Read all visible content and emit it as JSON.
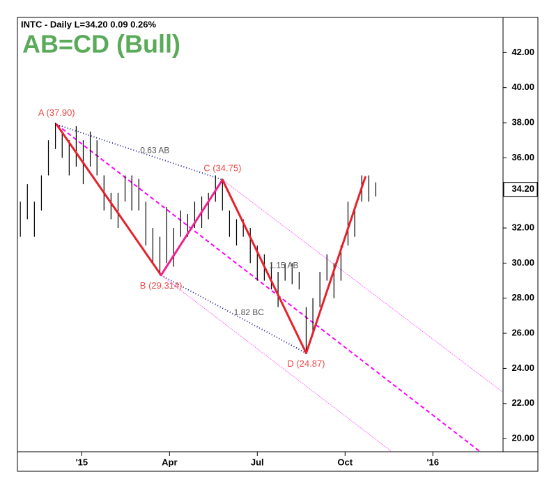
{
  "chart_data": {
    "type": "ohlc",
    "header": "INTC - Daily  L=34.20  0.09  0.26%",
    "title": "AB=CD (Bull)",
    "xlim": [
      -0.2,
      16.4
    ],
    "ylim": [
      19.25,
      44
    ],
    "xticks": [
      {
        "value": 2,
        "label": "'15"
      },
      {
        "value": 5,
        "label": "Apr"
      },
      {
        "value": 8,
        "label": "Jul"
      },
      {
        "value": 11,
        "label": "Oct"
      },
      {
        "value": 14,
        "label": "'16"
      }
    ],
    "yticks": [
      {
        "value": 20,
        "label": "20.00"
      },
      {
        "value": 22,
        "label": "22.00"
      },
      {
        "value": 24,
        "label": "24.00"
      },
      {
        "value": 26,
        "label": "26.00"
      },
      {
        "value": 28,
        "label": "28.00"
      },
      {
        "value": 30,
        "label": "30.00"
      },
      {
        "value": 32,
        "label": "32.00"
      },
      {
        "value": 34,
        "label": "34.00"
      },
      {
        "value": 36,
        "label": "36.00"
      },
      {
        "value": 38,
        "label": "38.00"
      },
      {
        "value": 40,
        "label": "40.00"
      },
      {
        "value": 42,
        "label": "42.00"
      }
    ],
    "bar_color": "#000000",
    "bars": {
      "x": [
        -0.1,
        0.14,
        0.38,
        0.62,
        0.86,
        1.1,
        1.33,
        1.57,
        1.81,
        2.05,
        2.29,
        2.52,
        2.76,
        3,
        3.24,
        3.48,
        3.71,
        3.95,
        4.19,
        4.43,
        4.67,
        4.9,
        5.14,
        5.38,
        5.62,
        5.86,
        6.1,
        6.33,
        6.57,
        6.81,
        7.05,
        7.29,
        7.52,
        7.76,
        8,
        8.24,
        8.48,
        8.71,
        8.95,
        9.19,
        9.43,
        9.67,
        9.9,
        10.14,
        10.38,
        10.62,
        10.86,
        11.1,
        11.33,
        11.57,
        11.81,
        12.05
      ],
      "high": [
        33.5,
        34.5,
        33.5,
        35,
        37,
        38,
        37.5,
        37,
        37.8,
        37,
        37.5,
        37,
        35,
        34,
        34,
        35,
        35,
        34.8,
        33.5,
        32,
        31.5,
        33.2,
        32,
        33,
        32.8,
        33.5,
        33.8,
        34,
        35,
        34.7,
        33,
        32.5,
        32.5,
        32,
        31,
        30.5,
        30,
        29.5,
        30,
        30,
        29.5,
        27.5,
        28,
        29.5,
        30.5,
        30,
        31,
        33.5,
        33,
        35,
        35,
        34.6
      ],
      "low": [
        31.5,
        32.5,
        31.5,
        33,
        35,
        36.5,
        36,
        35,
        35.5,
        34.5,
        35.5,
        35,
        33,
        32.5,
        32,
        33.5,
        33,
        33,
        31,
        30,
        29.3,
        30,
        29.8,
        31.5,
        31.5,
        32,
        32,
        32.5,
        33.5,
        33,
        31.5,
        31,
        31.5,
        30,
        29,
        29,
        28.5,
        27.5,
        29,
        28.8,
        28.5,
        24.9,
        26,
        27.5,
        29,
        28,
        29,
        31,
        31.5,
        33.5,
        33.5,
        33.8
      ]
    },
    "pattern": {
      "label_color": "#f04848",
      "segment_colors": [
        "#e8202a",
        "#f0208f",
        "#e8202a",
        "#e8202a"
      ],
      "points": [
        {
          "label": "A (37.90)",
          "x": 1.14,
          "y": 37.9
        },
        {
          "label": "B (29.314)",
          "x": 4.71,
          "y": 29.314
        },
        {
          "label": "C (34.75)",
          "x": 6.81,
          "y": 34.75
        },
        {
          "label": "D (24.87)",
          "x": 9.67,
          "y": 24.87
        },
        {
          "x": 11.69,
          "y": 34.9
        }
      ],
      "cd_ratio": "1.15 AB"
    },
    "projection_lines": [
      {
        "label": "0.63 AB",
        "color": "#1a1a8c",
        "x": [
          1.14,
          6.81
        ],
        "y": [
          37.9,
          34.75
        ]
      },
      {
        "label": "1.82 BC",
        "color": "#1a1a8c",
        "x": [
          4.71,
          9.67
        ],
        "y": [
          29.314,
          24.87
        ]
      }
    ],
    "channel": [
      {
        "color": "#ff00ff",
        "style": "dashed",
        "x": [
          1.14,
          15.62
        ],
        "y": [
          37.9,
          19.25
        ]
      },
      {
        "color": "#ff00ff",
        "style": "thin",
        "x": [
          6.81,
          16.38
        ],
        "y": [
          34.75,
          22.66
        ]
      },
      {
        "color": "#ff00ff",
        "style": "thin",
        "x": [
          4.71,
          12.6
        ],
        "y": [
          29.314,
          19.25
        ]
      }
    ],
    "last_price": {
      "value": 34.2,
      "label": "34.20"
    },
    "title_color": "#5aaa5a"
  }
}
